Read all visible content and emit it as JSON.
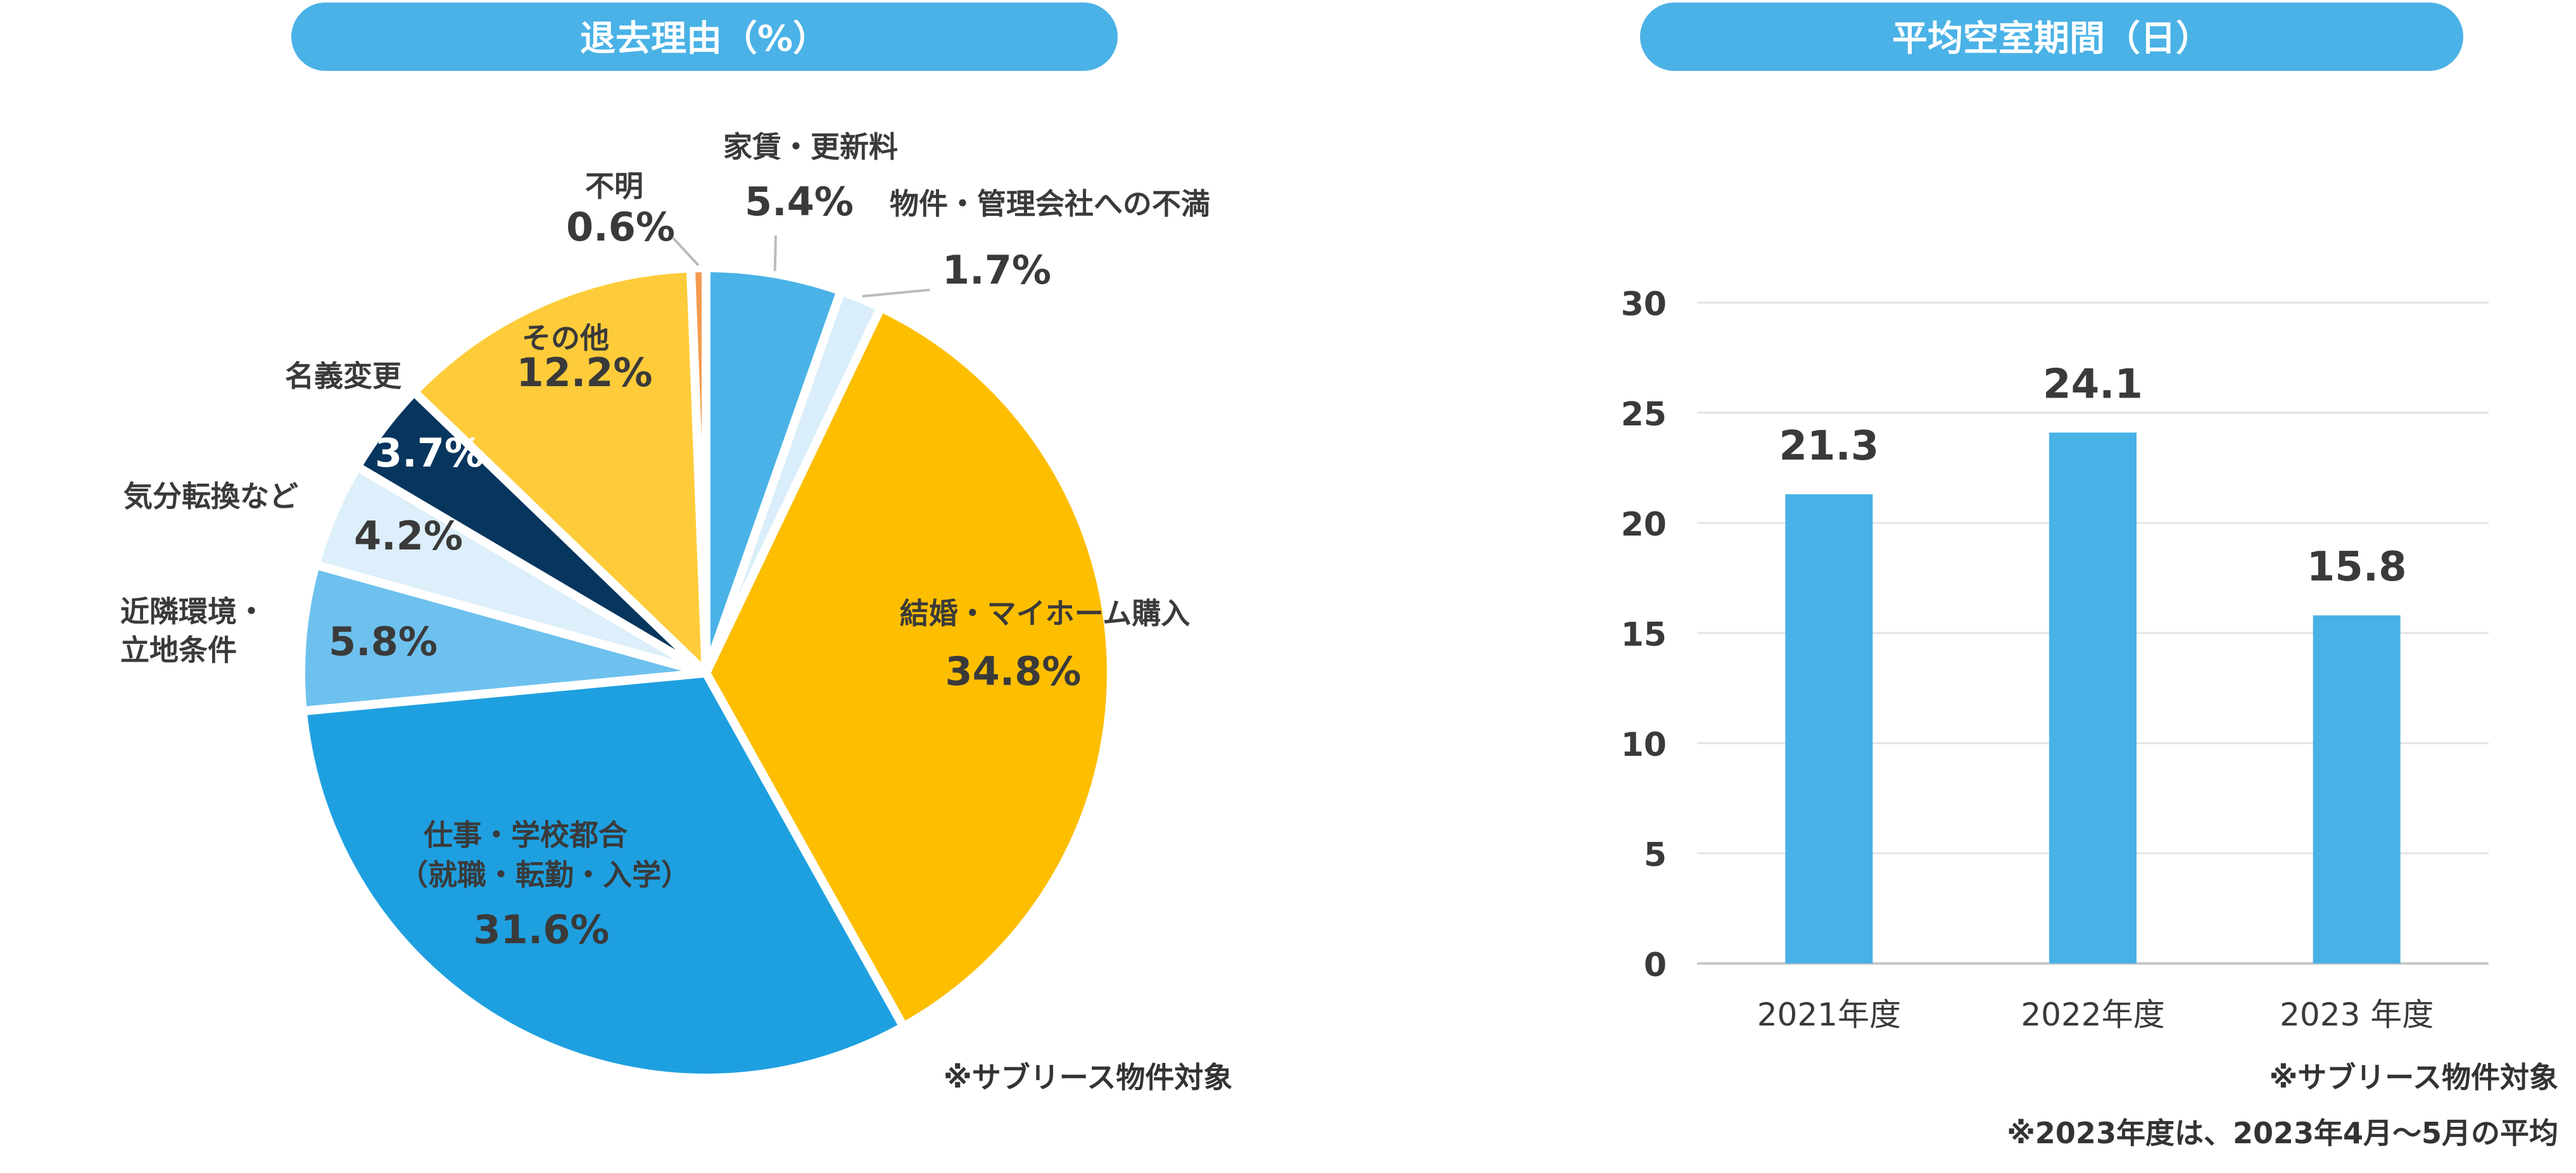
{
  "left_title": "退去理由（%）",
  "right_title": "平均空室期間（日）",
  "chart_data": [
    {
      "type": "pie",
      "title": "退去理由（%）",
      "unit": "%",
      "slices": [
        {
          "label": "家賃・更新料",
          "value": 5.4,
          "display": "5.4%",
          "color": "#4AB2E6"
        },
        {
          "label": "物件・管理会社への不満",
          "value": 1.7,
          "display": "1.7%",
          "color": "#D9EEFA"
        },
        {
          "label": "結婚・マイホーム購入",
          "value": 34.8,
          "display": "34.8%",
          "color": "#FDBE00"
        },
        {
          "label": "仕事・学校都合（就職・転勤・入学）",
          "label_line1": "仕事・学校都合",
          "label_line2": "（就職・転勤・入学）",
          "value": 31.6,
          "display": "31.6%",
          "color": "#1EA0E0"
        },
        {
          "label": "近隣環境・立地条件",
          "label_line1": "近隣環境・",
          "label_line2": "立地条件",
          "value": 5.8,
          "display": "5.8%",
          "color": "#6EC1EE"
        },
        {
          "label": "気分転換など",
          "value": 4.2,
          "display": "4.2%",
          "color": "#DCEFFA"
        },
        {
          "label": "名義変更",
          "value": 3.7,
          "display": "3.7%",
          "color": "#06355E"
        },
        {
          "label": "その他",
          "value": 12.2,
          "display": "12.2%",
          "color": "#FECC3A"
        },
        {
          "label": "不明",
          "value": 0.6,
          "display": "0.6%",
          "color": "#F39B4F"
        }
      ],
      "note": "※サブリース物件対象"
    },
    {
      "type": "bar",
      "title": "平均空室期間（日）",
      "categories": [
        "2021年度",
        "2022年度",
        "2023 年度"
      ],
      "values": [
        21.3,
        24.1,
        15.8
      ],
      "value_labels": [
        "21.3",
        "24.1",
        "15.8"
      ],
      "ylim": [
        0,
        30
      ],
      "yticks": [
        0,
        5,
        10,
        15,
        20,
        25,
        30
      ],
      "grid": true,
      "bar_color": "#48B1E6",
      "notes": [
        "※サブリース物件対象",
        "※2023年度は、2023年4月～5月の平均"
      ]
    }
  ]
}
